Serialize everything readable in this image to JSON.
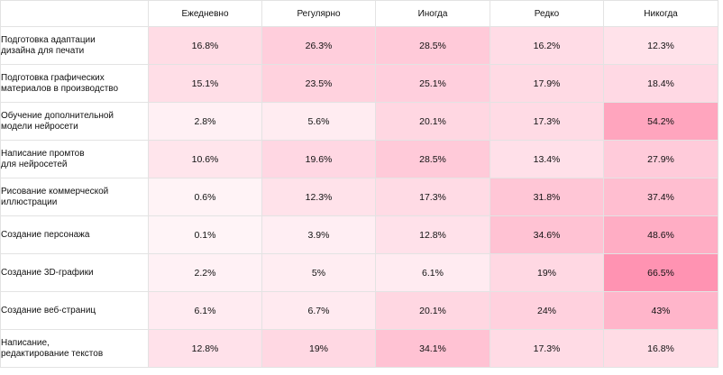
{
  "chart_data": {
    "type": "heatmap",
    "columns": [
      "Ежедневно",
      "Регулярно",
      "Иногда",
      "Редко",
      "Никогда"
    ],
    "rows": [
      "Подготовка адаптации\nдизайна для печати",
      "Подготовка графических\nматериалов в производство",
      "Обучение дополнительной\nмодели нейросети",
      "Написание промтов\nдля нейросетей",
      "Рисование коммерческой\nиллюстрации",
      "Создание персонажа",
      "Создание 3D-графики",
      "Создание веб-страниц",
      "Написание,\nредактирование текстов"
    ],
    "values": [
      [
        16.8,
        26.3,
        28.5,
        16.2,
        12.3
      ],
      [
        15.1,
        23.5,
        25.1,
        17.9,
        18.4
      ],
      [
        2.8,
        5.6,
        20.1,
        17.3,
        54.2
      ],
      [
        10.6,
        19.6,
        28.5,
        13.4,
        27.9
      ],
      [
        0.6,
        12.3,
        17.3,
        31.8,
        37.4
      ],
      [
        0.1,
        3.9,
        12.8,
        34.6,
        48.6
      ],
      [
        2.2,
        5,
        6.1,
        19,
        66.5
      ],
      [
        6.1,
        6.7,
        20.1,
        24,
        43
      ],
      [
        12.8,
        19,
        34.1,
        17.3,
        16.8
      ]
    ],
    "value_labels": [
      [
        "16.8%",
        "26.3%",
        "28.5%",
        "16.2%",
        "12.3%"
      ],
      [
        "15.1%",
        "23.5%",
        "25.1%",
        "17.9%",
        "18.4%"
      ],
      [
        "2.8%",
        "5.6%",
        "20.1%",
        "17.3%",
        "54.2%"
      ],
      [
        "10.6%",
        "19.6%",
        "28.5%",
        "13.4%",
        "27.9%"
      ],
      [
        "0.6%",
        "12.3%",
        "17.3%",
        "31.8%",
        "37.4%"
      ],
      [
        "0.1%",
        "3.9%",
        "12.8%",
        "34.6%",
        "48.6%"
      ],
      [
        "2.2%",
        "5%",
        "6.1%",
        "19%",
        "66.5%"
      ],
      [
        "6.1%",
        "6.7%",
        "20.1%",
        "24%",
        "43%"
      ],
      [
        "12.8%",
        "19%",
        "34.1%",
        "17.3%",
        "16.8%"
      ]
    ],
    "color_scale": {
      "low": "#fff4f7",
      "high": "#ff8eae",
      "min": 0,
      "max": 70
    }
  }
}
